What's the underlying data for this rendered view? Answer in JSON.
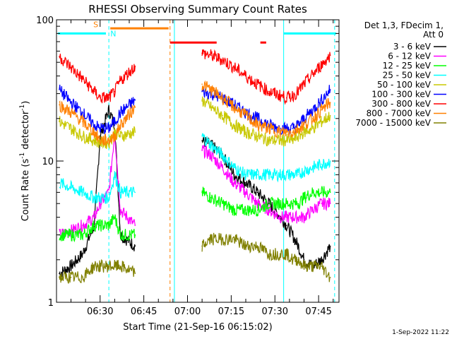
{
  "chart_data": {
    "type": "line",
    "title": "RHESSI Observing Summary Count Rates",
    "xlabel": "Start Time (21-Sep-16 06:15:02)",
    "ylabel": "Count Rate (s",
    "ylabel_sup": "-1",
    "ylabel_rest": " detector",
    "ylabel_close": ")",
    "y_scale": "log",
    "ylim": [
      1,
      100
    ],
    "y_ticks": [
      {
        "value": 1,
        "label": "1"
      },
      {
        "value": 10,
        "label": "10"
      },
      {
        "value": 100,
        "label": "100"
      }
    ],
    "xlim_min": [
      15.03,
      112
    ],
    "x_ticks": [
      {
        "value": 30,
        "label": "06:30"
      },
      {
        "value": 45,
        "label": "06:45"
      },
      {
        "value": 60,
        "label": "07:00"
      },
      {
        "value": 75,
        "label": "07:15"
      },
      {
        "value": 90,
        "label": "07:30"
      },
      {
        "value": 105,
        "label": "07:45"
      }
    ],
    "legend_header": [
      "Det 1,3, FDecim 1,",
      "Att 0"
    ],
    "legend_placement": "right",
    "series": [
      {
        "name": "3 - 6 keV",
        "color": "#000000",
        "values": [
          1.6,
          1.8,
          2.2,
          3.5,
          15,
          23,
          18,
          3,
          2.5,
          14,
          13,
          11,
          8,
          7,
          6,
          5,
          4,
          3.5,
          3,
          2.5,
          2,
          1.8,
          2,
          2.5
        ]
      },
      {
        "name": "6 - 12 keV",
        "color": "#ff00ff",
        "values": [
          3,
          3.2,
          3.5,
          4,
          5,
          6,
          16,
          4.5,
          3.5,
          12,
          11,
          9,
          7,
          6,
          5,
          4.5,
          4,
          4,
          4,
          4,
          4,
          4.5,
          5,
          5
        ]
      },
      {
        "name": "12 - 25 keV",
        "color": "#00ff00",
        "values": [
          3,
          3,
          3,
          3.5,
          3.5,
          3.5,
          4,
          3,
          3,
          6,
          5.5,
          5,
          4.5,
          4.5,
          4.5,
          5,
          5,
          5,
          5,
          5,
          5.5,
          6,
          6,
          6
        ]
      },
      {
        "name": "25 - 50 keV",
        "color": "#00ffff",
        "values": [
          7,
          6.5,
          6,
          5.5,
          5.5,
          5.5,
          8,
          6,
          6,
          15,
          13,
          11,
          9,
          8,
          8,
          8,
          8,
          8,
          8,
          8,
          8.5,
          9,
          9.5,
          10
        ]
      },
      {
        "name": "50 - 100 keV",
        "color": "#c8c800",
        "values": [
          19,
          17,
          15,
          14,
          13.5,
          13.5,
          16,
          15,
          16,
          27,
          24,
          21,
          18,
          16,
          15,
          14,
          14,
          14,
          14,
          15,
          16,
          17,
          19,
          21
        ]
      },
      {
        "name": "100 - 300 keV",
        "color": "#0000ff",
        "values": [
          32,
          26,
          22,
          18,
          17,
          17,
          19,
          22,
          27,
          31,
          30,
          28,
          25,
          22,
          20,
          18,
          17,
          17,
          17,
          18,
          20,
          23,
          27,
          32
        ]
      },
      {
        "name": "300 - 800 keV",
        "color": "#ff0000",
        "values": [
          55,
          46,
          38,
          31,
          28,
          28,
          31,
          37,
          47,
          58,
          56,
          52,
          46,
          40,
          35,
          31,
          29,
          28,
          29,
          31,
          35,
          41,
          48,
          56
        ]
      },
      {
        "name": "800 - 7000 keV",
        "color": "#ff8000",
        "values": [
          25,
          22,
          19,
          16,
          14,
          14,
          15,
          18,
          24,
          35,
          32,
          28,
          24,
          21,
          18,
          17,
          16,
          16,
          16,
          17,
          18,
          20,
          23,
          26
        ]
      },
      {
        "name": "7000 - 15000 keV",
        "color": "#808000",
        "values": [
          1.5,
          1.5,
          1.5,
          1.8,
          1.8,
          1.8,
          1.8,
          1.8,
          1.6,
          2.5,
          2.8,
          2.8,
          2.8,
          2.5,
          2.5,
          2.2,
          2.2,
          2.2,
          2,
          2,
          1.8,
          1.8,
          1.8,
          1.5
        ]
      }
    ],
    "series_x_min": [
      [
        16,
        20,
        24,
        28,
        30,
        33,
        35,
        37,
        42,
        65,
        68,
        72,
        76,
        80,
        84,
        88,
        92,
        94,
        96,
        98,
        100,
        103,
        106,
        109
      ],
      [
        16,
        20,
        24,
        28,
        30,
        33,
        35,
        37,
        42,
        65,
        68,
        72,
        76,
        80,
        84,
        88,
        92,
        94,
        96,
        98,
        100,
        103,
        106,
        109
      ],
      [
        16,
        20,
        24,
        28,
        30,
        33,
        35,
        37,
        42,
        65,
        68,
        72,
        76,
        80,
        84,
        88,
        92,
        94,
        96,
        98,
        100,
        103,
        106,
        109
      ],
      [
        16,
        20,
        24,
        28,
        30,
        33,
        35,
        37,
        42,
        65,
        68,
        72,
        76,
        80,
        84,
        88,
        92,
        94,
        96,
        98,
        100,
        103,
        106,
        109
      ],
      [
        16,
        20,
        24,
        28,
        30,
        33,
        35,
        37,
        42,
        65,
        68,
        72,
        76,
        80,
        84,
        88,
        92,
        94,
        96,
        98,
        100,
        103,
        106,
        109
      ],
      [
        16,
        20,
        24,
        28,
        30,
        33,
        35,
        37,
        42,
        65,
        68,
        72,
        76,
        80,
        84,
        88,
        92,
        94,
        96,
        98,
        100,
        103,
        106,
        109
      ],
      [
        16,
        20,
        24,
        28,
        30,
        33,
        35,
        37,
        42,
        65,
        68,
        72,
        76,
        80,
        84,
        88,
        92,
        94,
        96,
        98,
        100,
        103,
        106,
        109
      ],
      [
        16,
        20,
        24,
        28,
        30,
        33,
        35,
        37,
        42,
        65,
        68,
        72,
        76,
        80,
        84,
        88,
        92,
        94,
        96,
        98,
        100,
        103,
        106,
        109
      ],
      [
        16,
        20,
        24,
        28,
        30,
        33,
        35,
        37,
        42,
        65,
        68,
        72,
        76,
        80,
        84,
        88,
        92,
        94,
        96,
        98,
        100,
        103,
        106,
        109
      ]
    ],
    "flag_bars": [
      {
        "label": "",
        "color": "#00ffff",
        "x_min": [
          15.5,
          32
        ],
        "y": 80
      },
      {
        "label": "",
        "color": "#00ffff",
        "x_min": [
          93,
          111
        ],
        "y": 80
      },
      {
        "label": "S",
        "color": "#ff8000",
        "x_min": [
          33.5,
          53.5
        ],
        "y": 87
      },
      {
        "label": "",
        "color": "#ff0000",
        "x_min": [
          54,
          70
        ],
        "y": 69
      },
      {
        "label": "",
        "color": "#ff0000",
        "x_min": [
          85,
          87
        ],
        "y": 69
      }
    ],
    "flag_labels": [
      {
        "text": "S",
        "color": "#ff8000",
        "x_min": 28.5,
        "y": 93
      },
      {
        "text": "N",
        "color": "#00ffff",
        "x_min": 34.5,
        "y": 80
      }
    ],
    "vlines": [
      {
        "x_min": 33,
        "color": "#00ffff",
        "dashed": true
      },
      {
        "x_min": 54,
        "color": "#ff8000",
        "dashed": true
      },
      {
        "x_min": 55.5,
        "color": "#00ffff",
        "dashed": false
      },
      {
        "x_min": 93,
        "color": "#00ffff",
        "dashed": false
      },
      {
        "x_min": 110.5,
        "color": "#00ffff",
        "dashed": true
      }
    ],
    "footer": "1-Sep-2022 11:22"
  }
}
